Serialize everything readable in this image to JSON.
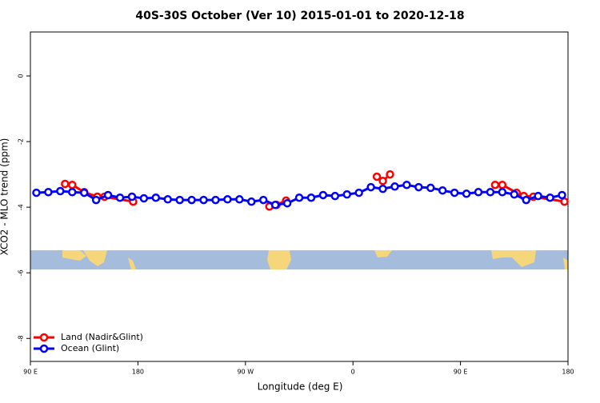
{
  "chart_data": {
    "type": "line",
    "title": "40S-30S October (Ver 10)   2015-01-01 to 2020-12-18",
    "x_label": "Longitude (deg E)",
    "y_label": "XCO2 - MLO trend (ppm)",
    "xlim": [
      90,
      540
    ],
    "ylim": [
      -8.7,
      1.34
    ],
    "xticks": [
      {
        "value": 90,
        "label": "90 E"
      },
      180,
      {
        "value": 270,
        "label": "90 W"
      },
      {
        "value": 360,
        "label": "0"
      },
      {
        "value": 450,
        "label": "90 E"
      },
      {
        "value": 540,
        "label": "180"
      }
    ],
    "yticks": [
      0,
      -2,
      -4,
      -6,
      -8
    ],
    "legend": "bottom-left",
    "series": [
      {
        "name": "Land (Nadir&Glint)",
        "color": "#ff0000",
        "x": [
          119,
          125,
          135,
          146,
          152,
          176,
          null,
          290,
          296,
          304,
          null,
          380,
          385,
          391,
          null,
          479,
          485,
          497,
          503,
          511,
          537
        ],
        "values": [
          -3.29,
          -3.32,
          -3.54,
          -3.68,
          -3.68,
          -3.83,
          null,
          -3.98,
          -3.93,
          -3.8,
          null,
          -3.07,
          -3.2,
          -3.0,
          null,
          -3.32,
          -3.32,
          -3.56,
          -3.66,
          -3.68,
          -3.83
        ]
      },
      {
        "name": "Ocean (Glint)",
        "color": "#0000ff",
        "x": [
          95,
          105,
          115,
          125,
          135,
          145,
          155,
          165,
          175,
          185,
          195,
          205,
          215,
          225,
          235,
          245,
          255,
          265,
          275,
          285,
          295,
          305,
          315,
          325,
          335,
          345,
          355,
          365,
          375,
          385,
          395,
          405,
          415,
          425,
          435,
          445,
          455,
          465,
          475,
          485,
          495,
          505,
          515,
          525,
          535
        ],
        "values": [
          -3.56,
          -3.54,
          -3.51,
          -3.54,
          -3.56,
          -3.78,
          -3.63,
          -3.71,
          -3.68,
          -3.73,
          -3.71,
          -3.76,
          -3.78,
          -3.78,
          -3.78,
          -3.78,
          -3.76,
          -3.76,
          -3.83,
          -3.78,
          -3.93,
          -3.88,
          -3.71,
          -3.71,
          -3.63,
          -3.66,
          -3.61,
          -3.56,
          -3.39,
          -3.44,
          -3.37,
          -3.32,
          -3.39,
          -3.41,
          -3.49,
          -3.56,
          -3.59,
          -3.54,
          -3.54,
          -3.54,
          -3.61,
          -3.78,
          -3.66,
          -3.71,
          -3.63
        ]
      }
    ]
  }
}
